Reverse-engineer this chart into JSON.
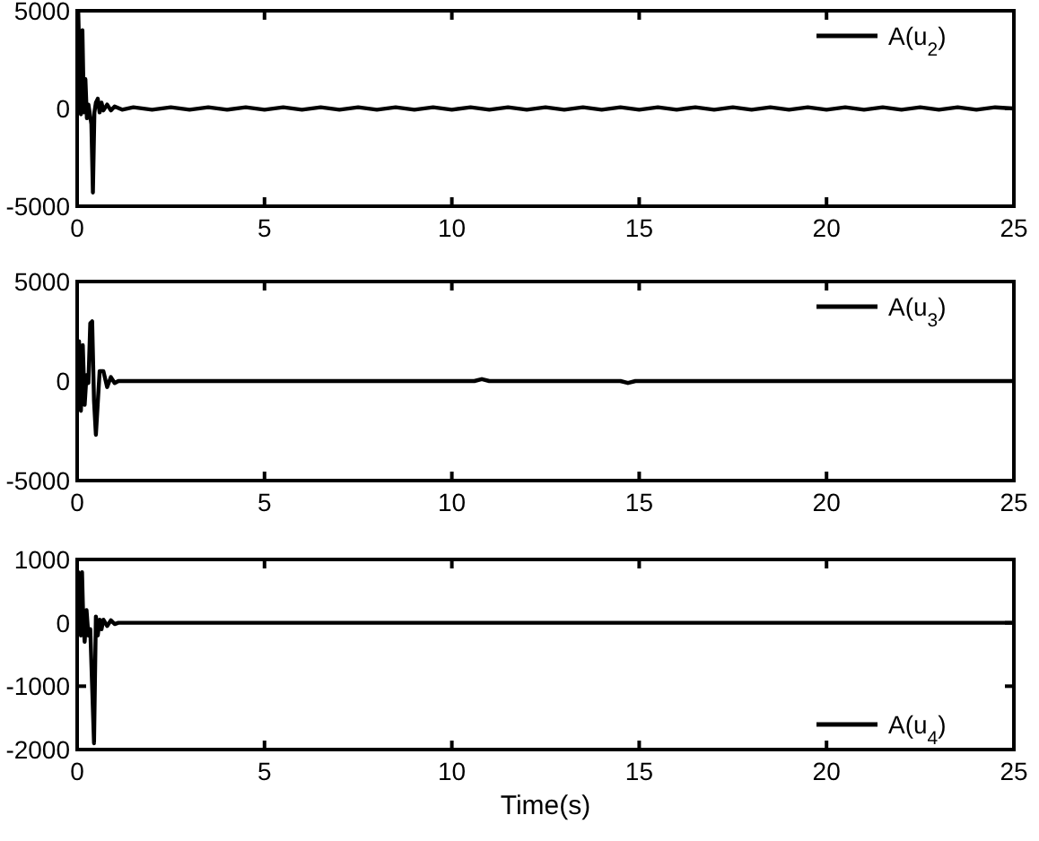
{
  "chart_data": [
    {
      "type": "line",
      "xlim": [
        0,
        25
      ],
      "xticks": [
        0,
        5,
        10,
        15,
        20,
        25
      ],
      "ylim": [
        -5000,
        5000
      ],
      "yticks": [
        -5000,
        0,
        5000
      ],
      "legend": "top right",
      "grid": false,
      "line_style": "solid",
      "series": [
        {
          "name": "A(u$_{2}$)",
          "color": "#000000",
          "x": [
            0,
            0.03,
            0.06,
            0.1,
            0.14,
            0.18,
            0.22,
            0.26,
            0.3,
            0.34,
            0.38,
            0.42,
            0.46,
            0.5,
            0.55,
            0.6,
            0.65,
            0.7,
            0.8,
            0.9,
            1,
            1.2,
            1.5,
            2,
            2.5,
            3,
            3.5,
            4,
            4.5,
            5,
            5.5,
            6,
            6.5,
            7,
            7.5,
            8,
            8.5,
            9,
            9.5,
            10,
            10.5,
            11,
            11.5,
            12,
            12.5,
            13,
            13.5,
            14,
            14.5,
            15,
            15.5,
            16,
            16.5,
            17,
            17.5,
            18,
            18.5,
            19,
            19.5,
            20,
            20.5,
            21,
            21.5,
            22,
            22.5,
            23,
            23.5,
            24,
            24.5,
            25
          ],
          "values": [
            0,
            4900,
            2500,
            -300,
            4000,
            -200,
            1500,
            -500,
            200,
            -300,
            -800,
            -4300,
            -200,
            300,
            500,
            -200,
            300,
            -100,
            200,
            -100,
            100,
            -60,
            60,
            -60,
            60,
            -60,
            60,
            -60,
            60,
            -60,
            60,
            -60,
            60,
            -60,
            60,
            -60,
            60,
            -60,
            60,
            -60,
            60,
            -60,
            60,
            -60,
            60,
            -60,
            60,
            -60,
            60,
            -60,
            60,
            -60,
            60,
            -60,
            60,
            -60,
            60,
            -60,
            60,
            -60,
            60,
            -60,
            60,
            -60,
            60,
            -60,
            60,
            -60,
            60,
            0
          ]
        }
      ]
    },
    {
      "type": "line",
      "xlim": [
        0,
        25
      ],
      "xticks": [
        0,
        5,
        10,
        15,
        20,
        25
      ],
      "ylim": [
        -5000,
        5000
      ],
      "yticks": [
        -5000,
        0,
        5000
      ],
      "legend": "top right",
      "grid": false,
      "line_style": "solid",
      "series": [
        {
          "name": "A(u$_{3}$)",
          "color": "#000000",
          "x": [
            0,
            0.05,
            0.1,
            0.15,
            0.2,
            0.25,
            0.3,
            0.35,
            0.4,
            0.45,
            0.5,
            0.6,
            0.7,
            0.8,
            0.9,
            1,
            1.1,
            1.5,
            5,
            10.6,
            10.8,
            11,
            14.5,
            14.7,
            14.9,
            20,
            25
          ],
          "values": [
            0,
            2000,
            -1500,
            1800,
            -1200,
            300,
            -100,
            2900,
            3000,
            -1000,
            -2700,
            500,
            500,
            -300,
            200,
            -100,
            0,
            0,
            0,
            0,
            100,
            0,
            0,
            -100,
            0,
            0,
            0
          ]
        }
      ]
    },
    {
      "type": "line",
      "xlim": [
        0,
        25
      ],
      "xticks": [
        0,
        5,
        10,
        15,
        20,
        25
      ],
      "ylim": [
        -2000,
        1000
      ],
      "yticks": [
        -2000,
        -1000,
        0,
        1000
      ],
      "legend": "bottom right",
      "grid": false,
      "line_style": "solid",
      "xlabel": "Time(s)",
      "series": [
        {
          "name": "A(u$_{4}$)",
          "color": "#000000",
          "x": [
            0,
            0.03,
            0.07,
            0.1,
            0.13,
            0.16,
            0.2,
            0.25,
            0.3,
            0.35,
            0.4,
            0.45,
            0.5,
            0.55,
            0.6,
            0.65,
            0.7,
            0.8,
            0.9,
            1,
            1.1,
            1.5,
            5,
            10,
            15,
            20,
            25
          ],
          "values": [
            0,
            800,
            300,
            -200,
            800,
            100,
            -300,
            200,
            -200,
            -100,
            -1000,
            -1900,
            100,
            -200,
            50,
            -100,
            50,
            -50,
            40,
            -20,
            0,
            0,
            0,
            0,
            0,
            0,
            0
          ]
        }
      ]
    }
  ]
}
